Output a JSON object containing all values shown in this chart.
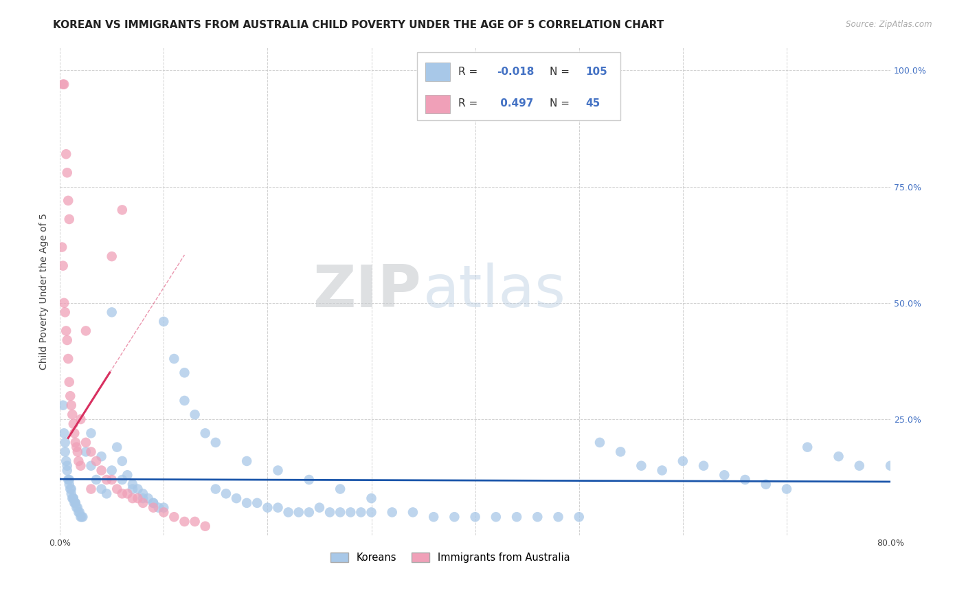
{
  "title": "KOREAN VS IMMIGRANTS FROM AUSTRALIA CHILD POVERTY UNDER THE AGE OF 5 CORRELATION CHART",
  "source": "Source: ZipAtlas.com",
  "ylabel": "Child Poverty Under the Age of 5",
  "xlim": [
    0.0,
    0.8
  ],
  "ylim": [
    0.0,
    1.05
  ],
  "xtick_vals": [
    0.0,
    0.1,
    0.2,
    0.3,
    0.4,
    0.5,
    0.6,
    0.7,
    0.8
  ],
  "xticklabels": [
    "0.0%",
    "",
    "",
    "",
    "",
    "",
    "",
    "",
    "80.0%"
  ],
  "ytick_vals": [
    0.0,
    0.25,
    0.5,
    0.75,
    1.0
  ],
  "yticklabels_right": [
    "",
    "25.0%",
    "50.0%",
    "75.0%",
    "100.0%"
  ],
  "blue_R": -0.018,
  "blue_N": 105,
  "pink_R": 0.497,
  "pink_N": 45,
  "blue_color": "#a8c8e8",
  "pink_color": "#f0a0b8",
  "blue_line_color": "#1a55aa",
  "pink_line_color": "#d83060",
  "grid_color": "#cccccc",
  "watermark_zip": "ZIP",
  "watermark_atlas": "atlas",
  "background_color": "#ffffff",
  "title_fontsize": 11,
  "axis_label_fontsize": 10,
  "tick_fontsize": 9,
  "right_tick_color": "#4472c4",
  "legend_R_color": "#4472c4",
  "legend_text_color": "#333333"
}
